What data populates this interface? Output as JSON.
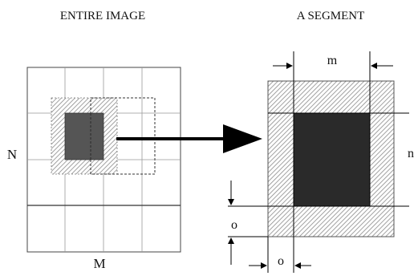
{
  "diagram": {
    "left_title": "ENTIRE IMAGE",
    "right_title": "A SEGMENT",
    "label_N": "N",
    "label_M": "M",
    "label_m": "m",
    "label_n": "n",
    "label_o_vertical": "o",
    "label_o_horizontal": "o"
  },
  "colors": {
    "block_fill": "#2a2a2a",
    "small_block_fill": "#555555",
    "hatch": "#888888",
    "grid_line": "#777777",
    "arrow": "#000000"
  }
}
